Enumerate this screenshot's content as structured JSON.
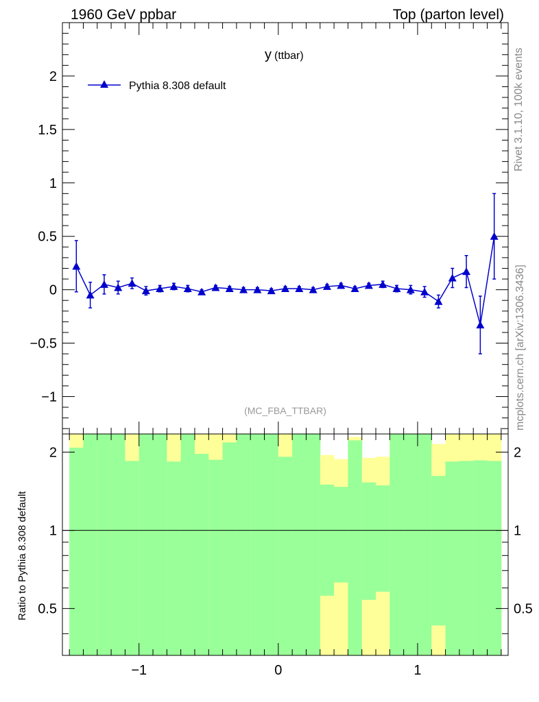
{
  "header": {
    "left": "1960 GeV ppbar",
    "right": "Top (parton level)"
  },
  "side_labels": {
    "rivet": "Rivet 3.1.10,  100k events",
    "mcplots": "mcplots.cern.ch [arXiv:1306.3436]"
  },
  "colors": {
    "series": "#0000cc",
    "band_inner": "#99ff99",
    "band_outer": "#ffff99"
  },
  "chart_data": {
    "type": "line",
    "title_main": "y",
    "title_sub": "(ttbar)",
    "analysis_label": "(MC_FBA_TTBAR)",
    "legend": "Pythia 8.308 default",
    "legend_position": "top-left",
    "xlim": [
      -1.55,
      1.65
    ],
    "ylim": [
      -1.35,
      2.5
    ],
    "x_ticks": [
      -1,
      0,
      1
    ],
    "x_tick_labels": [
      "−1",
      "0",
      "1"
    ],
    "y_ticks": [
      -1,
      -0.5,
      0,
      0.5,
      1,
      1.5,
      2
    ],
    "y_tick_labels": [
      "−1",
      "−0.5",
      "0",
      "0.5",
      "1",
      "1.5",
      "2"
    ],
    "series": [
      {
        "name": "Pythia 8.308 default",
        "x": [
          -1.45,
          -1.35,
          -1.25,
          -1.15,
          -1.05,
          -0.95,
          -0.85,
          -0.75,
          -0.65,
          -0.55,
          -0.45,
          -0.35,
          -0.25,
          -0.15,
          -0.05,
          0.05,
          0.15,
          0.25,
          0.35,
          0.45,
          0.55,
          0.65,
          0.75,
          0.85,
          0.95,
          1.05,
          1.15,
          1.25,
          1.35,
          1.45,
          1.55
        ],
        "y": [
          0.22,
          -0.05,
          0.05,
          0.02,
          0.06,
          -0.01,
          0.01,
          0.03,
          0.01,
          -0.02,
          0.02,
          0.01,
          0.0,
          0.0,
          -0.01,
          0.01,
          0.01,
          0.0,
          0.03,
          0.04,
          0.01,
          0.04,
          0.05,
          0.01,
          0.0,
          -0.02,
          -0.11,
          0.11,
          0.17,
          -0.33,
          0.5
        ],
        "err": [
          0.24,
          0.12,
          0.09,
          0.06,
          0.05,
          0.04,
          0.03,
          0.03,
          0.03,
          0.02,
          0.02,
          0.02,
          0.02,
          0.02,
          0.02,
          0.02,
          0.02,
          0.02,
          0.02,
          0.02,
          0.02,
          0.02,
          0.03,
          0.03,
          0.04,
          0.05,
          0.06,
          0.09,
          0.15,
          0.27,
          0.4
        ]
      }
    ],
    "ratio": {
      "ylabel": "Ratio to Pythia 8.308 default",
      "ylim": [
        0.33,
        2.35
      ],
      "y_ticks": [
        0.5,
        1,
        2
      ],
      "y_tick_labels": [
        "0.5",
        "1",
        "2"
      ],
      "reference_line": 1,
      "bins_x": [
        -1.5,
        -1.4,
        -1.3,
        -1.2,
        -1.1,
        -1.0,
        -0.9,
        -0.8,
        -0.7,
        -0.6,
        -0.5,
        -0.4,
        -0.3,
        -0.2,
        -0.1,
        0.0,
        0.1,
        0.2,
        0.3,
        0.4,
        0.5,
        0.6,
        0.7,
        0.8,
        0.9,
        1.0,
        1.1,
        1.2,
        1.3,
        1.4,
        1.5,
        1.6
      ],
      "outer_high": [
        2.35,
        2.35,
        2.35,
        2.35,
        2.35,
        2.35,
        2.35,
        2.35,
        2.35,
        2.35,
        2.35,
        2.35,
        2.35,
        2.35,
        2.35,
        2.35,
        2.35,
        2.35,
        2.35,
        2.35,
        2.35,
        2.35,
        2.35,
        2.35,
        2.35,
        2.35,
        2.35,
        2.35,
        2.35,
        2.35,
        2.35
      ],
      "outer_low": [
        0.33,
        0.33,
        0.33,
        0.33,
        0.33,
        0.33,
        0.33,
        0.33,
        0.33,
        0.33,
        0.33,
        0.33,
        0.33,
        0.33,
        0.33,
        0.33,
        0.33,
        0.33,
        0.33,
        0.33,
        0.33,
        0.33,
        0.33,
        0.33,
        0.33,
        0.33,
        0.33,
        0.33,
        0.33,
        0.33,
        0.33
      ],
      "outer_top_white": [
        2.35,
        2.35,
        2.35,
        2.35,
        2.35,
        2.35,
        2.35,
        2.35,
        2.35,
        2.35,
        2.35,
        2.35,
        2.35,
        2.35,
        2.35,
        2.35,
        2.35,
        2.35,
        1.95,
        1.88,
        2.29,
        1.9,
        1.92,
        2.35,
        2.35,
        2.35,
        2.15,
        2.35,
        2.35,
        2.35,
        2.35
      ],
      "inner_high": [
        2.08,
        2.35,
        2.35,
        2.35,
        1.85,
        2.35,
        2.35,
        1.84,
        2.35,
        1.97,
        1.87,
        2.18,
        2.35,
        2.35,
        2.35,
        1.92,
        2.35,
        2.35,
        1.5,
        1.47,
        2.22,
        1.53,
        1.49,
        2.35,
        2.35,
        2.35,
        1.62,
        1.84,
        1.85,
        1.86,
        1.85
      ],
      "inner_low": [
        0.33,
        0.33,
        0.33,
        0.33,
        0.33,
        0.33,
        0.33,
        0.33,
        0.33,
        0.33,
        0.33,
        0.33,
        0.33,
        0.33,
        0.33,
        0.33,
        0.33,
        0.33,
        0.56,
        0.63,
        0.33,
        0.54,
        0.58,
        0.33,
        0.33,
        0.33,
        0.43,
        0.33,
        0.33,
        0.33,
        0.33
      ]
    }
  }
}
